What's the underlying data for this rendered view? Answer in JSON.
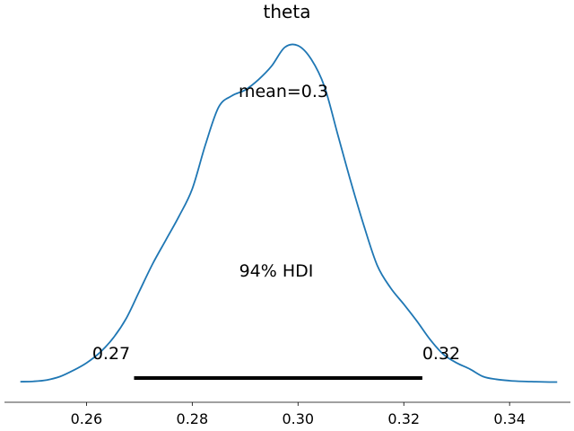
{
  "chart_data": {
    "type": "area",
    "title": "theta",
    "xlabel": "",
    "ylabel": "",
    "xlim": [
      0.2445,
      0.3515
    ],
    "xticks": [
      0.26,
      0.28,
      0.3,
      0.32,
      0.34
    ],
    "xtick_labels": [
      "0.26",
      "0.28",
      "0.30",
      "0.32",
      "0.34"
    ],
    "ylim": [
      0,
      1.0
    ],
    "series": [
      {
        "x": [
          0.2475,
          0.25,
          0.2525,
          0.255,
          0.2575,
          0.26,
          0.2625,
          0.265,
          0.2675,
          0.27,
          0.2725,
          0.275,
          0.2775,
          0.28,
          0.2825,
          0.285,
          0.2875,
          0.29,
          0.2925,
          0.295,
          0.2975,
          0.3,
          0.3025,
          0.305,
          0.3075,
          0.31,
          0.3125,
          0.315,
          0.3175,
          0.32,
          0.3225,
          0.325,
          0.3275,
          0.33,
          0.3325,
          0.335,
          0.3375,
          0.34,
          0.3425,
          0.345,
          0.3475,
          0.349
        ],
        "values": [
          0.005,
          0.006,
          0.01,
          0.02,
          0.038,
          0.06,
          0.09,
          0.132,
          0.19,
          0.27,
          0.35,
          0.42,
          0.49,
          0.57,
          0.7,
          0.81,
          0.843,
          0.86,
          0.89,
          0.93,
          0.985,
          0.99,
          0.95,
          0.87,
          0.73,
          0.59,
          0.46,
          0.345,
          0.28,
          0.232,
          0.182,
          0.128,
          0.085,
          0.06,
          0.042,
          0.02,
          0.012,
          0.008,
          0.006,
          0.005,
          0.004,
          0.004
        ],
        "color": "#1f77b4"
      }
    ],
    "annotations": {
      "mean_text": "mean=0.3",
      "mean_x": 0.2985,
      "hdi_text": "94% HDI",
      "hdi_low": 0.269,
      "hdi_high": 0.3235,
      "hdi_low_label": "0.27",
      "hdi_high_label": "0.32"
    },
    "grid": false,
    "legend": "none"
  }
}
